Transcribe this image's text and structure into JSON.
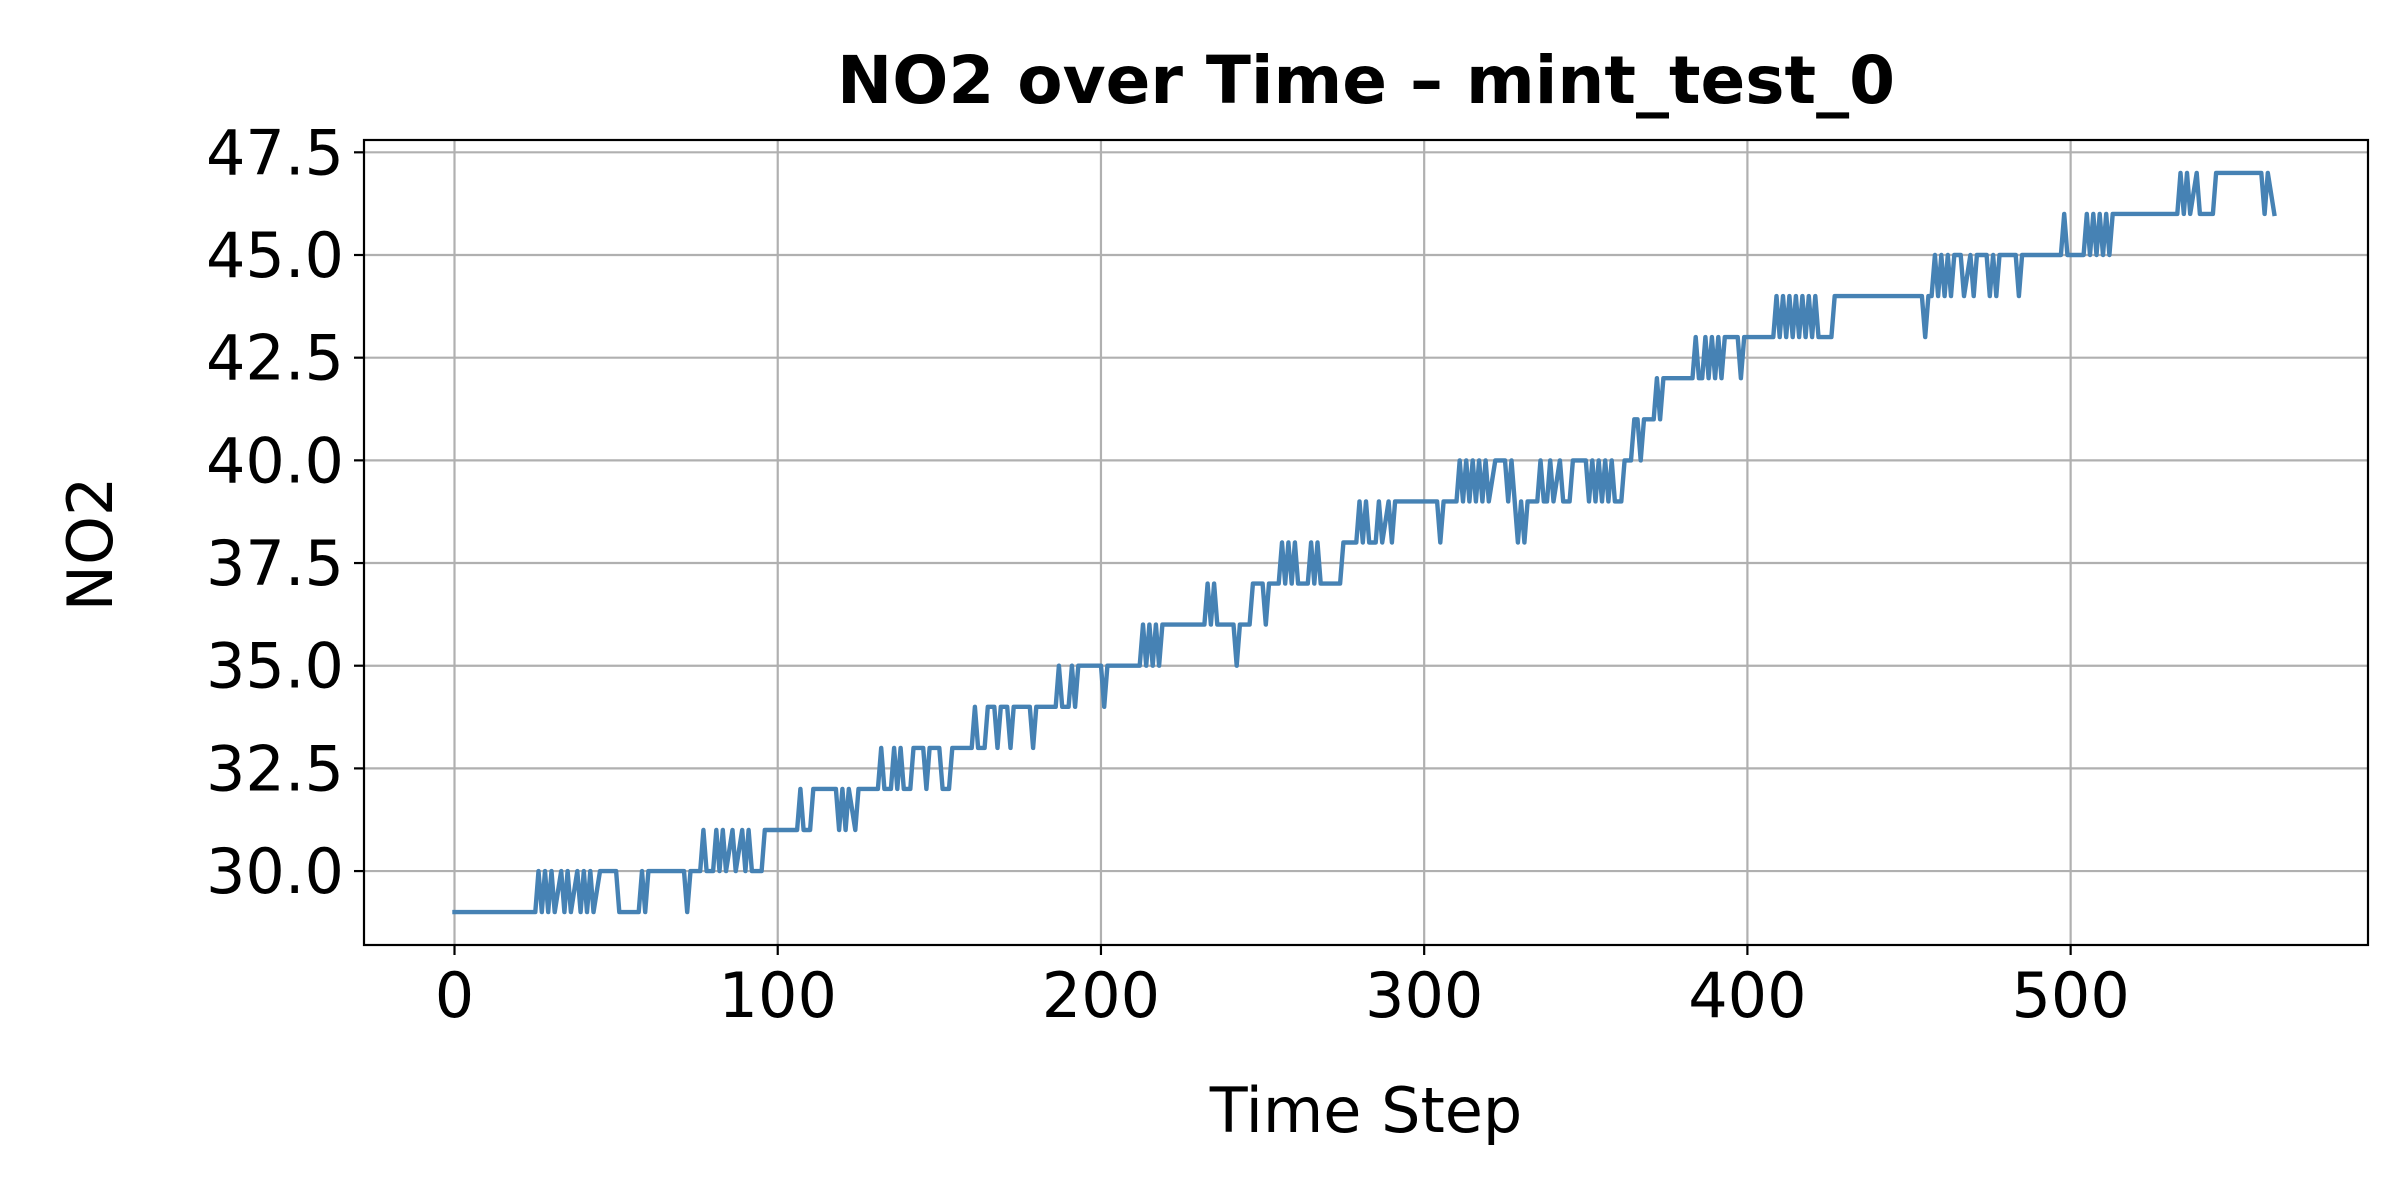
{
  "chart_data": {
    "type": "line",
    "title": "NO2 over Time – mint_test_0",
    "xlabel": "Time Step",
    "ylabel": "NO2",
    "xlim": [
      -28,
      592
    ],
    "ylim": [
      28.2,
      47.8
    ],
    "xticks": [
      0,
      100,
      200,
      300,
      400,
      500
    ],
    "xtick_labels": [
      "0",
      "100",
      "200",
      "300",
      "400",
      "500"
    ],
    "yticks": [
      30.0,
      32.5,
      35.0,
      37.5,
      40.0,
      42.5,
      45.0,
      47.5
    ],
    "ytick_labels": [
      "30.0",
      "32.5",
      "35.0",
      "37.5",
      "40.0",
      "42.5",
      "45.0",
      "47.5"
    ],
    "grid": true,
    "legend": "none",
    "series": [
      {
        "color": "#4682b4",
        "points": [
          [
            0,
            29
          ],
          [
            25,
            29
          ],
          [
            26,
            30
          ],
          [
            27,
            29
          ],
          [
            28,
            30
          ],
          [
            29,
            29
          ],
          [
            30,
            30
          ],
          [
            31,
            29
          ],
          [
            33,
            30
          ],
          [
            34,
            29
          ],
          [
            35,
            30
          ],
          [
            36,
            29
          ],
          [
            38,
            30
          ],
          [
            39,
            29
          ],
          [
            40,
            30
          ],
          [
            41,
            29
          ],
          [
            42,
            30
          ],
          [
            43,
            29
          ],
          [
            45,
            30
          ],
          [
            50,
            30
          ],
          [
            51,
            29
          ],
          [
            57,
            29
          ],
          [
            58,
            30
          ],
          [
            59,
            29
          ],
          [
            60,
            30
          ],
          [
            71,
            30
          ],
          [
            72,
            29
          ],
          [
            73,
            30
          ],
          [
            76,
            30
          ],
          [
            77,
            31
          ],
          [
            78,
            30
          ],
          [
            80,
            30
          ],
          [
            81,
            31
          ],
          [
            82,
            30
          ],
          [
            83,
            31
          ],
          [
            84,
            30
          ],
          [
            86,
            31
          ],
          [
            87,
            30
          ],
          [
            89,
            31
          ],
          [
            90,
            30
          ],
          [
            91,
            31
          ],
          [
            92,
            30
          ],
          [
            95,
            30
          ],
          [
            96,
            31
          ],
          [
            106,
            31
          ],
          [
            107,
            32
          ],
          [
            108,
            31
          ],
          [
            110,
            31
          ],
          [
            111,
            32
          ],
          [
            118,
            32
          ],
          [
            119,
            31
          ],
          [
            120,
            32
          ],
          [
            121,
            31
          ],
          [
            122,
            32
          ],
          [
            124,
            31
          ],
          [
            125,
            32
          ],
          [
            131,
            32
          ],
          [
            132,
            33
          ],
          [
            133,
            32
          ],
          [
            135,
            32
          ],
          [
            136,
            33
          ],
          [
            137,
            32
          ],
          [
            138,
            33
          ],
          [
            139,
            32
          ],
          [
            141,
            32
          ],
          [
            142,
            33
          ],
          [
            145,
            33
          ],
          [
            146,
            32
          ],
          [
            147,
            33
          ],
          [
            150,
            33
          ],
          [
            151,
            32
          ],
          [
            153,
            32
          ],
          [
            154,
            33
          ],
          [
            160,
            33
          ],
          [
            161,
            34
          ],
          [
            162,
            33
          ],
          [
            164,
            33
          ],
          [
            165,
            34
          ],
          [
            167,
            34
          ],
          [
            168,
            33
          ],
          [
            169,
            34
          ],
          [
            171,
            34
          ],
          [
            172,
            33
          ],
          [
            173,
            34
          ],
          [
            178,
            34
          ],
          [
            179,
            33
          ],
          [
            180,
            34
          ],
          [
            186,
            34
          ],
          [
            187,
            35
          ],
          [
            188,
            34
          ],
          [
            190,
            34
          ],
          [
            191,
            35
          ],
          [
            192,
            34
          ],
          [
            193,
            35
          ],
          [
            200,
            35
          ],
          [
            201,
            34
          ],
          [
            202,
            35
          ],
          [
            212,
            35
          ],
          [
            213,
            36
          ],
          [
            214,
            35
          ],
          [
            215,
            36
          ],
          [
            216,
            35
          ],
          [
            217,
            36
          ],
          [
            218,
            35
          ],
          [
            219,
            36
          ],
          [
            232,
            36
          ],
          [
            233,
            37
          ],
          [
            234,
            36
          ],
          [
            235,
            37
          ],
          [
            236,
            36
          ],
          [
            241,
            36
          ],
          [
            242,
            35
          ],
          [
            243,
            36
          ],
          [
            246,
            36
          ],
          [
            247,
            37
          ],
          [
            250,
            37
          ],
          [
            251,
            36
          ],
          [
            252,
            37
          ],
          [
            255,
            37
          ],
          [
            256,
            38
          ],
          [
            257,
            37
          ],
          [
            258,
            38
          ],
          [
            259,
            37
          ],
          [
            260,
            38
          ],
          [
            261,
            37
          ],
          [
            264,
            37
          ],
          [
            265,
            38
          ],
          [
            266,
            37
          ],
          [
            267,
            38
          ],
          [
            268,
            37
          ],
          [
            274,
            37
          ],
          [
            275,
            38
          ],
          [
            279,
            38
          ],
          [
            280,
            39
          ],
          [
            281,
            38
          ],
          [
            282,
            39
          ],
          [
            283,
            38
          ],
          [
            285,
            38
          ],
          [
            286,
            39
          ],
          [
            287,
            38
          ],
          [
            289,
            39
          ],
          [
            290,
            38
          ],
          [
            291,
            39
          ],
          [
            304,
            39
          ],
          [
            305,
            38
          ],
          [
            306,
            39
          ],
          [
            310,
            39
          ],
          [
            311,
            40
          ],
          [
            312,
            39
          ],
          [
            313,
            40
          ],
          [
            314,
            39
          ],
          [
            315,
            40
          ],
          [
            316,
            39
          ],
          [
            317,
            40
          ],
          [
            318,
            39
          ],
          [
            319,
            40
          ],
          [
            320,
            39
          ],
          [
            322,
            40
          ],
          [
            325,
            40
          ],
          [
            326,
            39
          ],
          [
            327,
            40
          ],
          [
            328,
            39
          ],
          [
            329,
            38
          ],
          [
            330,
            39
          ],
          [
            331,
            38
          ],
          [
            332,
            39
          ],
          [
            335,
            39
          ],
          [
            336,
            40
          ],
          [
            337,
            39
          ],
          [
            338,
            39
          ],
          [
            339,
            40
          ],
          [
            340,
            39
          ],
          [
            342,
            40
          ],
          [
            343,
            39
          ],
          [
            345,
            39
          ],
          [
            346,
            40
          ],
          [
            350,
            40
          ],
          [
            351,
            39
          ],
          [
            352,
            40
          ],
          [
            353,
            39
          ],
          [
            354,
            40
          ],
          [
            355,
            39
          ],
          [
            356,
            40
          ],
          [
            357,
            39
          ],
          [
            358,
            40
          ],
          [
            359,
            39
          ],
          [
            361,
            39
          ],
          [
            362,
            40
          ],
          [
            364,
            40
          ],
          [
            365,
            41
          ],
          [
            366,
            41
          ],
          [
            367,
            40
          ],
          [
            368,
            41
          ],
          [
            371,
            41
          ],
          [
            372,
            42
          ],
          [
            373,
            41
          ],
          [
            374,
            42
          ],
          [
            383,
            42
          ],
          [
            384,
            43
          ],
          [
            385,
            42
          ],
          [
            386,
            42
          ],
          [
            387,
            43
          ],
          [
            388,
            42
          ],
          [
            389,
            43
          ],
          [
            390,
            42
          ],
          [
            391,
            43
          ],
          [
            392,
            42
          ],
          [
            393,
            43
          ],
          [
            397,
            43
          ],
          [
            398,
            42
          ],
          [
            399,
            43
          ],
          [
            408,
            43
          ],
          [
            409,
            44
          ],
          [
            410,
            43
          ],
          [
            411,
            44
          ],
          [
            412,
            43
          ],
          [
            413,
            44
          ],
          [
            414,
            43
          ],
          [
            415,
            44
          ],
          [
            416,
            43
          ],
          [
            417,
            44
          ],
          [
            418,
            43
          ],
          [
            419,
            44
          ],
          [
            420,
            43
          ],
          [
            421,
            44
          ],
          [
            422,
            43
          ],
          [
            426,
            43
          ],
          [
            427,
            44
          ],
          [
            454,
            44
          ],
          [
            455,
            43
          ],
          [
            456,
            44
          ],
          [
            457,
            44
          ],
          [
            458,
            45
          ],
          [
            459,
            44
          ],
          [
            460,
            45
          ],
          [
            461,
            44
          ],
          [
            462,
            45
          ],
          [
            463,
            44
          ],
          [
            464,
            45
          ],
          [
            466,
            45
          ],
          [
            467,
            44
          ],
          [
            469,
            45
          ],
          [
            470,
            44
          ],
          [
            471,
            45
          ],
          [
            474,
            45
          ],
          [
            475,
            44
          ],
          [
            476,
            45
          ],
          [
            477,
            44
          ],
          [
            478,
            45
          ],
          [
            483,
            45
          ],
          [
            484,
            44
          ],
          [
            485,
            45
          ],
          [
            497,
            45
          ],
          [
            498,
            46
          ],
          [
            499,
            45
          ],
          [
            504,
            45
          ],
          [
            505,
            46
          ],
          [
            506,
            45
          ],
          [
            507,
            46
          ],
          [
            508,
            45
          ],
          [
            509,
            46
          ],
          [
            510,
            45
          ],
          [
            511,
            46
          ],
          [
            512,
            45
          ],
          [
            513,
            46
          ],
          [
            533,
            46
          ],
          [
            534,
            47
          ],
          [
            535,
            46
          ],
          [
            536,
            47
          ],
          [
            537,
            46
          ],
          [
            539,
            47
          ],
          [
            540,
            46
          ],
          [
            544,
            46
          ],
          [
            545,
            47
          ],
          [
            559,
            47
          ],
          [
            560,
            46
          ],
          [
            561,
            47
          ],
          [
            563,
            46
          ]
        ]
      }
    ]
  }
}
